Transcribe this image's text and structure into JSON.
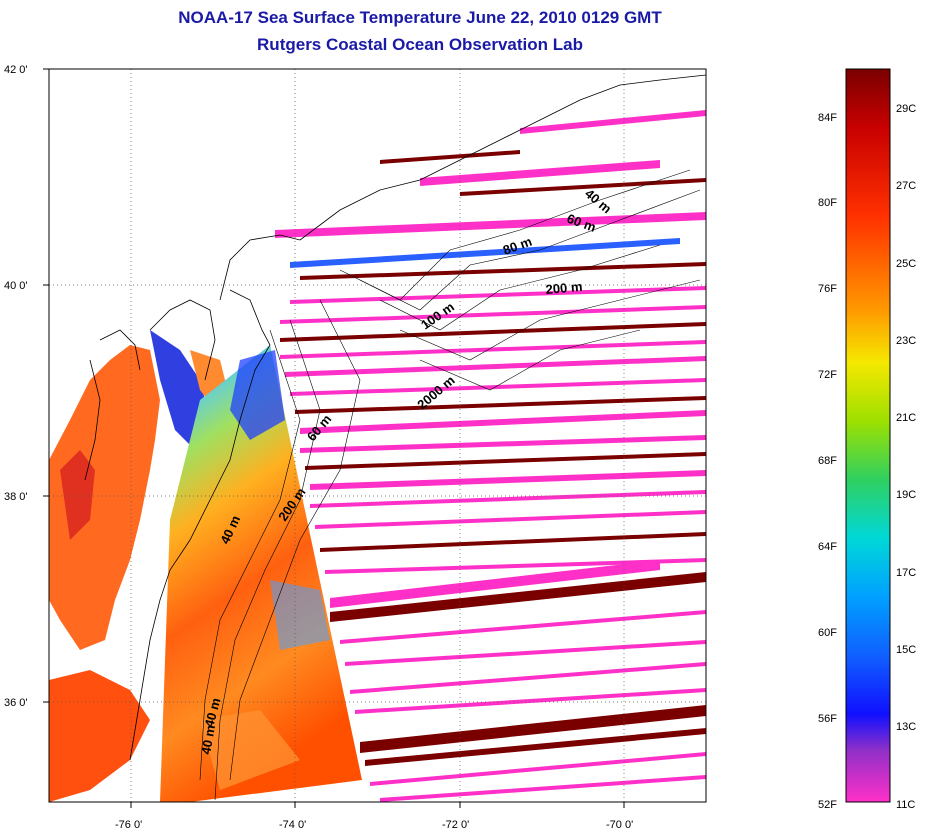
{
  "title": {
    "line1": "NOAA-17 Sea Surface Temperature June 22, 2010 0129 GMT",
    "line2": "Rutgers Coastal Ocean Observation Lab"
  },
  "map": {
    "lon_range": [
      -77.0,
      -69.0
    ],
    "lat_range": [
      35.0,
      42.0
    ],
    "lon_ticks": [
      "-76 0'",
      "-74 0'",
      "-72 0'",
      "-70 0'"
    ],
    "lat_ticks": [
      "42 0'",
      "40 0'",
      "38 0'",
      "36 0'"
    ],
    "grid": "dotted"
  },
  "contour_labels": [
    "40 m",
    "60 m",
    "80 m",
    "200 m",
    "100 m",
    "2000 m",
    "60 m",
    "200 m",
    "40 m",
    "40 m",
    "40 m"
  ],
  "colorbar": {
    "fahrenheit_labels": [
      "84F",
      "80F",
      "76F",
      "72F",
      "68F",
      "64F",
      "60F",
      "56F",
      "52F"
    ],
    "celsius_labels": [
      "29C",
      "27C",
      "25C",
      "23C",
      "21C",
      "19C",
      "17C",
      "15C",
      "13C",
      "11C"
    ],
    "colors": [
      "#7a0000",
      "#d40000",
      "#ff3a00",
      "#ff9a00",
      "#f5e600",
      "#9ee000",
      "#2fd060",
      "#00d8d8",
      "#00a8ff",
      "#1060ff",
      "#1010ff",
      "#8a30c8",
      "#d040d8",
      "#ff30c8"
    ]
  }
}
